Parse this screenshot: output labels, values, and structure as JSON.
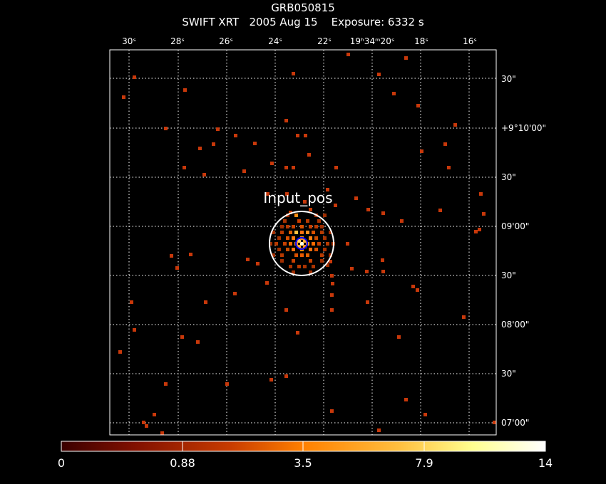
{
  "header": {
    "object": "GRB050815",
    "instrument": "SWIFT XRT",
    "date": "2005 Aug 15",
    "exposure": "Exposure: 6332 s"
  },
  "ra_ticks_top": [
    "30ˢ",
    "28ˢ",
    "26ˢ",
    "24ˢ",
    "22ˢ",
    "19ʰ34ᵐ20ˢ",
    "18ˢ",
    "16ˢ"
  ],
  "dec_ticks_right": [
    "30\"",
    "+9°10'00\"",
    "30\"",
    "09'00\"",
    "30\"",
    "08'00\"",
    "30\"",
    "07'00\""
  ],
  "source_label": "Input_pos",
  "colorbar": {
    "labels": [
      "0",
      "0.88",
      "3.5",
      "7.9",
      "14"
    ]
  },
  "colors": {
    "background": "#000000",
    "frame": "#ffffff",
    "grid": "#ffffff",
    "low_count": "#c8380a",
    "mid_count": "#ff8c00",
    "high_count": "#ffffe0",
    "circle": "#ffffff",
    "inner_circle": "#0000ff"
  }
}
